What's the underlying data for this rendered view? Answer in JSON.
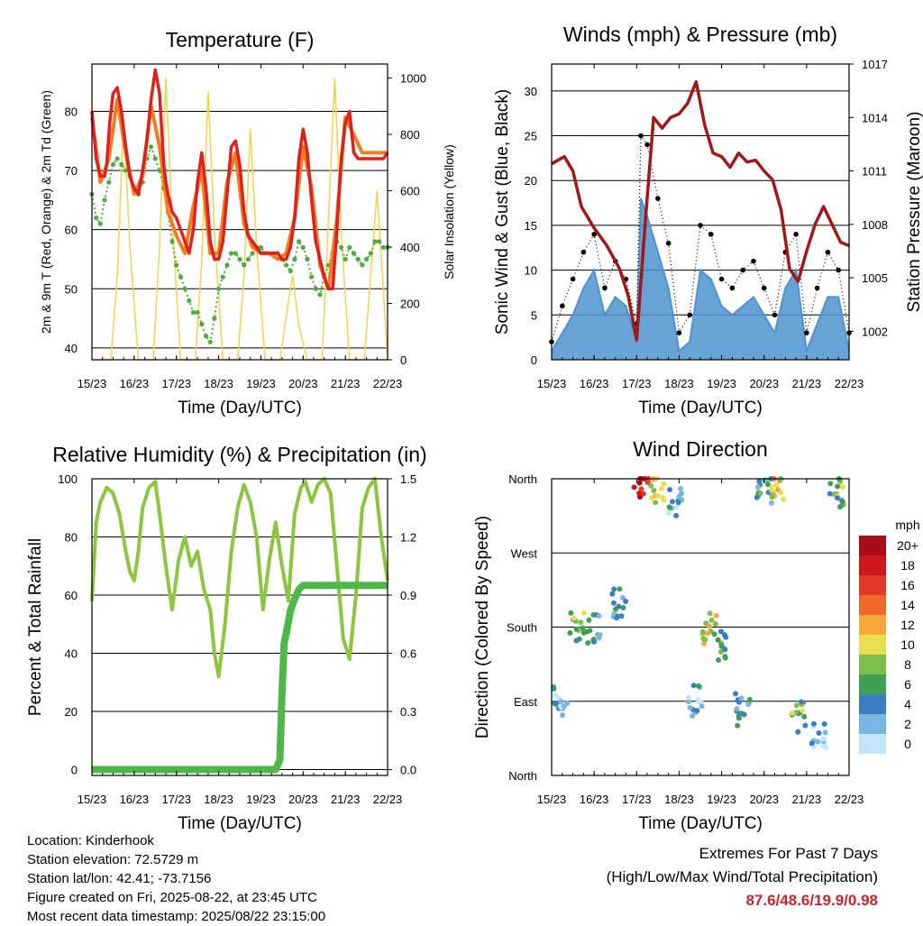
{
  "colors": {
    "t2m": "#e0201c",
    "t9m": "#f47c20",
    "td": "#4cad3c",
    "solar": "#f5d24a",
    "gust": "#000000",
    "wind": "#4e93cf",
    "pressure": "#a01818",
    "rh": "#8cc63f",
    "precip": "#4db848"
  },
  "x_ticks": [
    "15/23",
    "16/23",
    "17/23",
    "18/23",
    "19/23",
    "20/23",
    "21/23",
    "22/23"
  ],
  "chart_data": [
    {
      "type": "line",
      "title": "Temperature (F)",
      "xlabel": "Time (Day/UTC)",
      "ylabel": "2m & 9m T (Red, Orange) & 2m Td (Green)",
      "y2label": "Solar Insolation (Yellow)",
      "ylim": [
        38,
        88
      ],
      "y_ticks": [
        40,
        50,
        60,
        70,
        80
      ],
      "y2lim": [
        0,
        1050
      ],
      "y2_ticks": [
        0,
        200,
        400,
        600,
        800,
        1000
      ],
      "x_days": [
        0,
        7
      ],
      "series": [
        {
          "name": "2m T",
          "x": [
            0,
            0.1,
            0.2,
            0.3,
            0.35,
            0.42,
            0.5,
            0.6,
            0.7,
            0.8,
            0.9,
            1.0,
            1.1,
            1.2,
            1.3,
            1.4,
            1.5,
            1.6,
            1.7,
            1.75,
            1.8,
            1.9,
            2.0,
            2.1,
            2.2,
            2.3,
            2.4,
            2.5,
            2.6,
            2.7,
            2.8,
            2.9,
            3.0,
            3.1,
            3.2,
            3.3,
            3.4,
            3.5,
            3.6,
            3.7,
            3.8,
            3.9,
            4.0,
            4.1,
            4.2,
            4.3,
            4.4,
            4.5,
            4.6,
            4.7,
            4.8,
            4.9,
            5.0,
            5.1,
            5.2,
            5.3,
            5.4,
            5.5,
            5.6,
            5.7,
            5.8,
            5.9,
            6.0,
            6.1,
            6.2,
            6.3,
            6.4,
            6.5,
            6.6,
            6.7,
            6.8,
            6.9,
            7.0
          ],
          "values": [
            80,
            72,
            69,
            69,
            71,
            78,
            83,
            84,
            80,
            74,
            69,
            67,
            66,
            70,
            75,
            82,
            87,
            83,
            71,
            68,
            66,
            63,
            62,
            60,
            58,
            56,
            60,
            68,
            73,
            67,
            58,
            55,
            55,
            58,
            66,
            74,
            75,
            71,
            63,
            59,
            58,
            57,
            56,
            56,
            56,
            56,
            56,
            55,
            55,
            57,
            62,
            72,
            77,
            73,
            65,
            58,
            55,
            52,
            50,
            50,
            60,
            72,
            78,
            80,
            73,
            72,
            72,
            72,
            72,
            72,
            72,
            72,
            73
          ]
        },
        {
          "name": "9m T",
          "x": [
            0,
            0.2,
            0.4,
            0.6,
            0.8,
            1.0,
            1.2,
            1.4,
            1.6,
            1.8,
            2.0,
            2.2,
            2.4,
            2.6,
            2.8,
            3.0,
            3.2,
            3.4,
            3.6,
            3.8,
            4.0,
            4.2,
            4.4,
            4.6,
            4.8,
            5.0,
            5.2,
            5.4,
            5.6,
            5.8,
            6.0,
            6.2,
            6.4,
            7.0
          ],
          "values": [
            79,
            68,
            72,
            82,
            73,
            66,
            69,
            81,
            74,
            63,
            59,
            56,
            64,
            70,
            56,
            56,
            68,
            73,
            61,
            57,
            56,
            56,
            55,
            56,
            62,
            74,
            67,
            54,
            50,
            62,
            79,
            76,
            73,
            73
          ]
        },
        {
          "name": "2m Td",
          "x": [
            0,
            0.1,
            0.2,
            0.3,
            0.4,
            0.5,
            0.6,
            0.7,
            0.8,
            0.9,
            1.0,
            1.1,
            1.2,
            1.3,
            1.4,
            1.5,
            1.6,
            1.7,
            1.8,
            1.9,
            2.0,
            2.1,
            2.2,
            2.3,
            2.4,
            2.5,
            2.6,
            2.7,
            2.8,
            2.9,
            3.0,
            3.1,
            3.2,
            3.3,
            3.4,
            3.5,
            3.6,
            3.7,
            3.8,
            3.9,
            4.0,
            4.1,
            4.2,
            4.3,
            4.4,
            4.5,
            4.6,
            4.7,
            4.8,
            4.9,
            5.0,
            5.1,
            5.2,
            5.3,
            5.4,
            5.5,
            5.6,
            5.7,
            5.8,
            5.9,
            6.0,
            6.1,
            6.2,
            6.3,
            6.4,
            6.5,
            6.6,
            6.7,
            6.8,
            6.9,
            7.0
          ],
          "values": [
            66,
            62,
            61,
            65,
            68,
            71,
            72,
            71,
            70,
            69,
            67,
            66,
            68,
            72,
            74,
            72,
            70,
            67,
            63,
            58,
            54,
            52,
            50,
            48,
            46,
            46,
            44,
            42,
            41,
            45,
            50,
            52,
            54,
            56,
            56,
            55,
            54,
            55,
            56,
            57,
            57,
            56,
            56,
            56,
            56,
            55,
            54,
            53,
            55,
            58,
            57,
            55,
            52,
            50,
            49,
            52,
            54,
            56,
            58,
            57,
            55,
            57,
            56,
            55,
            54,
            55,
            56,
            58,
            58,
            57,
            57
          ]
        },
        {
          "name": "Solar Insolation",
          "axis": "right",
          "x": [
            0,
            0.45,
            0.6,
            0.75,
            0.9,
            1.1,
            1.45,
            1.6,
            1.75,
            1.9,
            2.1,
            2.45,
            2.6,
            2.75,
            2.9,
            3.1,
            3.45,
            3.6,
            3.75,
            3.9,
            4.1,
            4.45,
            4.6,
            4.75,
            4.9,
            5.1,
            5.45,
            5.6,
            5.75,
            5.9,
            6.1,
            6.45,
            6.6,
            6.75,
            6.9,
            7.0
          ],
          "values": [
            0,
            0,
            300,
            850,
            400,
            0,
            0,
            400,
            1000,
            500,
            0,
            0,
            350,
            950,
            450,
            0,
            0,
            300,
            820,
            400,
            0,
            0,
            150,
            300,
            120,
            0,
            0,
            500,
            1000,
            450,
            0,
            0,
            300,
            600,
            250,
            0
          ]
        }
      ]
    },
    {
      "type": "line",
      "title": "Winds (mph) & Pressure (mb)",
      "xlabel": "Time (Day/UTC)",
      "ylabel": "Sonic Wind & Gust (Blue, Black)",
      "y2label": "Station Pressure (Maroon)",
      "ylim": [
        0,
        33
      ],
      "y_ticks": [
        0,
        5,
        10,
        15,
        20,
        25,
        30
      ],
      "y2lim": [
        1000.4,
        1017.0
      ],
      "y2_ticks": [
        1002,
        1005,
        1008,
        1011,
        1014,
        1017
      ],
      "x_days": [
        0,
        7
      ],
      "series": [
        {
          "name": "Gust",
          "x": [
            0,
            0.25,
            0.5,
            0.75,
            1.0,
            1.25,
            1.5,
            1.75,
            2.0,
            2.1,
            2.25,
            2.5,
            2.75,
            3.0,
            3.25,
            3.5,
            3.75,
            4.0,
            4.25,
            4.5,
            4.75,
            5.0,
            5.25,
            5.5,
            5.75,
            6.0,
            6.25,
            6.5,
            6.75,
            7.0
          ],
          "values": [
            2,
            6,
            9,
            12,
            14,
            8,
            11,
            9,
            4,
            25,
            24,
            18,
            13,
            3,
            5,
            15,
            14,
            9,
            8,
            10,
            11,
            8,
            5,
            12,
            14,
            3,
            8,
            12,
            10,
            3
          ]
        },
        {
          "name": "Wind",
          "x": [
            0,
            0.25,
            0.5,
            0.75,
            1.0,
            1.25,
            1.5,
            1.75,
            2.0,
            2.1,
            2.25,
            2.5,
            2.75,
            3.0,
            3.25,
            3.5,
            3.75,
            4.0,
            4.25,
            4.5,
            4.75,
            5.0,
            5.25,
            5.5,
            5.75,
            6.0,
            6.25,
            6.5,
            6.75,
            7.0
          ],
          "values": [
            1,
            3,
            5,
            8,
            10,
            5,
            7,
            6,
            2,
            18,
            16,
            12,
            8,
            1,
            2,
            10,
            9,
            6,
            5,
            6,
            7,
            5,
            3,
            8,
            10,
            1,
            4,
            7,
            7,
            1
          ]
        },
        {
          "name": "Pressure",
          "axis": "right",
          "x": [
            0,
            0.3,
            0.5,
            0.7,
            1.0,
            1.3,
            1.6,
            1.8,
            2.0,
            2.2,
            2.4,
            2.6,
            2.8,
            3.0,
            3.2,
            3.4,
            3.6,
            3.8,
            4.0,
            4.2,
            4.4,
            4.6,
            4.8,
            5.0,
            5.2,
            5.4,
            5.6,
            5.8,
            6.0,
            6.2,
            6.4,
            6.6,
            6.8,
            7.0
          ],
          "values": [
            1011.4,
            1011.8,
            1011.0,
            1009.0,
            1007.8,
            1006.8,
            1005.5,
            1004.0,
            1001.5,
            1008.0,
            1014.0,
            1013.4,
            1014.0,
            1014.2,
            1014.8,
            1016.0,
            1013.6,
            1012.0,
            1011.8,
            1011.2,
            1012.0,
            1011.5,
            1011.6,
            1011.0,
            1010.5,
            1008.8,
            1005.5,
            1004.8,
            1006.5,
            1008.0,
            1009.0,
            1008.0,
            1007.0,
            1006.8
          ]
        }
      ]
    },
    {
      "type": "line",
      "title": "Relative Humidity (%) & Precipitation (in)",
      "xlabel": "Time (Day/UTC)",
      "ylabel": "Percent & Total Rainfall",
      "ylim": [
        -2,
        100
      ],
      "y_ticks": [
        0,
        20,
        40,
        60,
        80,
        100
      ],
      "y2lim": [
        -0.03,
        1.5
      ],
      "y2_ticks": [
        "0.0",
        "0.3",
        "0.6",
        "0.9",
        "1.2",
        "1.5"
      ],
      "x_days": [
        0,
        7
      ],
      "series": [
        {
          "name": "RH",
          "x": [
            0,
            0.1,
            0.2,
            0.35,
            0.5,
            0.65,
            0.8,
            0.9,
            1.0,
            1.1,
            1.2,
            1.35,
            1.5,
            1.6,
            1.75,
            1.9,
            2.05,
            2.2,
            2.35,
            2.5,
            2.65,
            2.8,
            2.9,
            3.0,
            3.15,
            3.3,
            3.45,
            3.6,
            3.75,
            3.9,
            4.05,
            4.2,
            4.35,
            4.5,
            4.65,
            4.8,
            4.95,
            5.05,
            5.2,
            5.35,
            5.5,
            5.65,
            5.8,
            5.95,
            6.1,
            6.25,
            6.4,
            6.55,
            6.7,
            6.85,
            7.0
          ],
          "values": [
            58,
            85,
            92,
            97,
            95,
            88,
            75,
            68,
            65,
            75,
            90,
            97,
            99,
            88,
            70,
            55,
            72,
            80,
            70,
            75,
            62,
            55,
            40,
            32,
            50,
            75,
            90,
            98,
            92,
            80,
            55,
            72,
            85,
            70,
            58,
            88,
            97,
            99,
            92,
            98,
            100,
            95,
            70,
            45,
            38,
            60,
            90,
            97,
            100,
            80,
            65
          ]
        },
        {
          "name": "Precip",
          "axis": "right",
          "x": [
            0,
            4.35,
            4.45,
            4.5,
            4.55,
            4.6,
            4.7,
            4.8,
            4.9,
            5.0,
            7.0
          ],
          "values": [
            0,
            0,
            0.05,
            0.4,
            0.65,
            0.7,
            0.82,
            0.88,
            0.93,
            0.95,
            0.95
          ]
        }
      ]
    },
    {
      "type": "scatter",
      "title": "Wind Direction",
      "xlabel": "Time (Day/UTC)",
      "ylabel": "Direction (Colored By Speed)",
      "y_ticks": [
        "North",
        "East",
        "South",
        "West",
        "North"
      ],
      "x_days": [
        0,
        7
      ],
      "legend": {
        "title": "mph",
        "labels": [
          "20+",
          "18",
          "16",
          "14",
          "12",
          "10",
          "8",
          "6",
          "4",
          "2",
          "0"
        ],
        "colors": [
          "#a50f15",
          "#cb181d",
          "#e03a28",
          "#f16929",
          "#f9a83a",
          "#e8df50",
          "#7dbd4b",
          "#3f9f55",
          "#3a7fc0",
          "#79b7e2",
          "#c2e5f7"
        ]
      },
      "clusters": [
        {
          "x": 0.2,
          "y": 90,
          "speed": 3
        },
        {
          "x": 0.6,
          "y": 180,
          "speed": 7
        },
        {
          "x": 1.0,
          "y": 180,
          "speed": 5
        },
        {
          "x": 1.6,
          "y": 210,
          "speed": 4
        },
        {
          "x": 2.1,
          "y": 355,
          "speed": 18
        },
        {
          "x": 2.5,
          "y": 350,
          "speed": 10
        },
        {
          "x": 2.9,
          "y": 330,
          "speed": 3
        },
        {
          "x": 3.4,
          "y": 90,
          "speed": 3
        },
        {
          "x": 3.7,
          "y": 180,
          "speed": 10
        },
        {
          "x": 4.0,
          "y": 160,
          "speed": 6
        },
        {
          "x": 4.5,
          "y": 80,
          "speed": 4
        },
        {
          "x": 5.0,
          "y": 350,
          "speed": 5
        },
        {
          "x": 5.3,
          "y": 355,
          "speed": 11
        },
        {
          "x": 5.8,
          "y": 70,
          "speed": 7
        },
        {
          "x": 6.3,
          "y": 50,
          "speed": 2
        },
        {
          "x": 6.7,
          "y": 345,
          "speed": 7
        }
      ]
    }
  ],
  "info": {
    "location": "Location: Kinderhook",
    "elevation": "Station elevation: 72.5729 m",
    "latlon": "Station lat/lon: 42.41; -73.7156",
    "created": "Figure created on Fri, 2025-08-22, at 23:45 UTC",
    "recent": "Most recent data timestamp: 2025/08/22 23:15:00"
  },
  "extremes": {
    "line1": "Extremes For Past 7 Days",
    "line2": "(High/Low/Max Wind/Total Precipitation)",
    "values": "87.6/48.6/19.9/0.98"
  }
}
